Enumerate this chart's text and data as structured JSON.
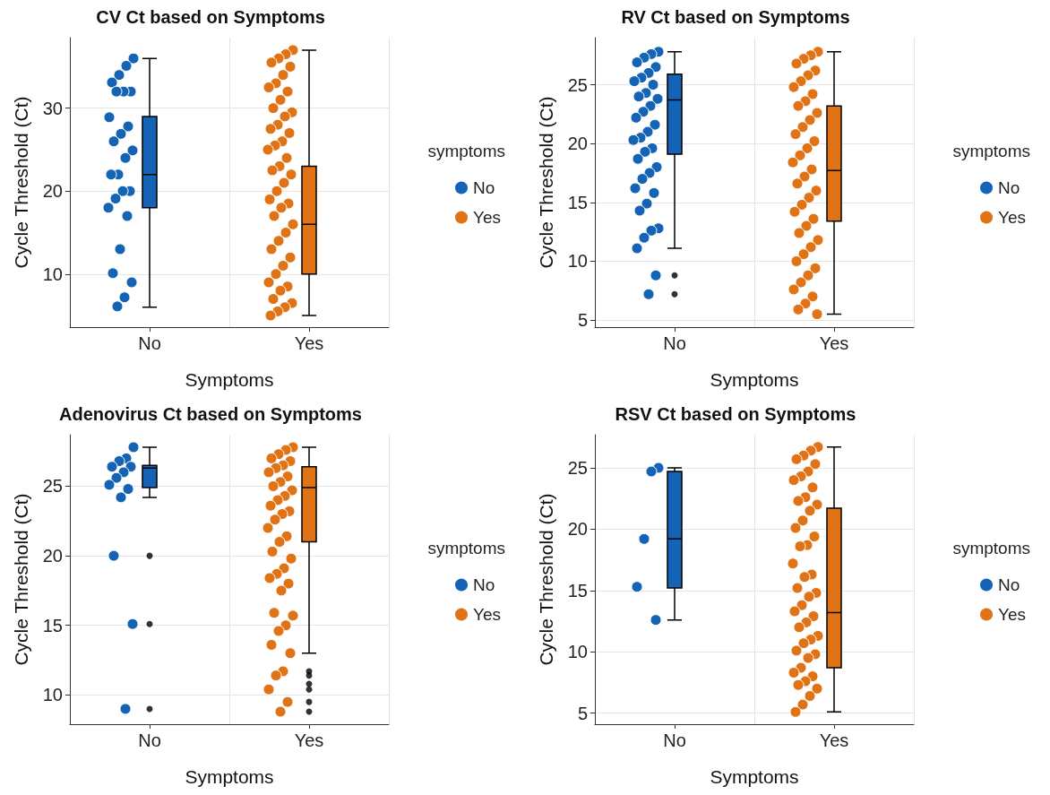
{
  "chart_data": [
    {
      "type": "box",
      "title": "CV Ct based on Symptoms",
      "xlabel": "Symptoms",
      "ylabel": "Cycle Threshold (Ct)",
      "legend_title": "symptoms",
      "legend": "right",
      "grid": true,
      "marker": "circle",
      "categories": [
        "No",
        "Yes"
      ],
      "colors": [
        "#1463b4",
        "#e07316"
      ],
      "ylim": [
        3.6,
        38.5
      ],
      "yticks": [
        10,
        20,
        30
      ],
      "boxes": [
        {
          "low": 6,
          "q1": 18,
          "median": 22,
          "q3": 29,
          "high": 36
        },
        {
          "low": 5,
          "q1": 10,
          "median": 16,
          "q3": 23,
          "high": 37
        }
      ],
      "series": [
        {
          "name": "No",
          "type": "scatter",
          "color": "#1463b4",
          "x": [
            "No",
            "No",
            "No",
            "No",
            "No",
            "No",
            "No",
            "No",
            "No",
            "No",
            "No",
            "No",
            "No",
            "No",
            "No",
            "No",
            "No",
            "No",
            "No",
            "No",
            "No",
            "No",
            "No",
            "No",
            "No"
          ],
          "values": [
            36,
            35.1,
            34,
            33.1,
            32,
            32,
            32,
            28.9,
            27.8,
            26.9,
            26,
            24.9,
            24,
            22,
            22,
            20,
            20,
            19.1,
            18,
            17,
            13,
            10.1,
            9,
            7.2,
            6.1
          ]
        },
        {
          "name": "Yes",
          "type": "scatter",
          "color": "#e07316",
          "x": [
            "Yes",
            "Yes",
            "Yes",
            "Yes",
            "Yes",
            "Yes",
            "Yes",
            "Yes",
            "Yes",
            "Yes",
            "Yes",
            "Yes",
            "Yes",
            "Yes",
            "Yes",
            "Yes",
            "Yes",
            "Yes",
            "Yes",
            "Yes",
            "Yes",
            "Yes",
            "Yes",
            "Yes",
            "Yes",
            "Yes",
            "Yes",
            "Yes",
            "Yes",
            "Yes",
            "Yes",
            "Yes",
            "Yes",
            "Yes",
            "Yes",
            "Yes",
            "Yes",
            "Yes",
            "Yes",
            "Yes",
            "Yes",
            "Yes",
            "Yes",
            "Yes"
          ],
          "values": [
            37,
            36.5,
            36,
            35.5,
            35,
            34,
            33,
            32.5,
            32,
            31,
            30,
            29.5,
            29,
            28,
            27.5,
            27,
            26,
            25.5,
            25,
            24,
            23,
            22.5,
            22,
            21,
            20,
            19,
            18.5,
            18,
            17,
            16,
            15,
            14,
            13,
            12,
            11,
            10,
            9,
            8.5,
            8,
            7,
            6.5,
            6,
            5.5,
            5
          ]
        }
      ]
    },
    {
      "type": "box",
      "title": "RV Ct based on Symptoms",
      "xlabel": "Symptoms",
      "ylabel": "Cycle Threshold (Ct)",
      "legend_title": "symptoms",
      "legend": "right",
      "grid": true,
      "marker": "circle",
      "categories": [
        "No",
        "Yes"
      ],
      "colors": [
        "#1463b4",
        "#e07316"
      ],
      "ylim": [
        4.4,
        29
      ],
      "yticks": [
        5,
        10,
        15,
        20,
        25
      ],
      "boxes": [
        {
          "low": 11.1,
          "q1": 19.1,
          "median": 23.7,
          "q3": 25.9,
          "high": 27.8,
          "outliers": [
            8.8,
            7.2
          ]
        },
        {
          "low": 5.5,
          "q1": 13.4,
          "median": 17.7,
          "q3": 23.2,
          "high": 27.8
        }
      ],
      "series": [
        {
          "name": "No",
          "type": "scatter",
          "color": "#1463b4",
          "x": [
            "No",
            "No",
            "No",
            "No",
            "No",
            "No",
            "No",
            "No",
            "No",
            "No",
            "No",
            "No",
            "No",
            "No",
            "No",
            "No",
            "No",
            "No",
            "No",
            "No",
            "No",
            "No",
            "No",
            "No",
            "No",
            "No",
            "No",
            "No",
            "No",
            "No",
            "No",
            "No",
            "No",
            "No",
            "No"
          ],
          "values": [
            27.8,
            27.6,
            27.3,
            26.9,
            26.5,
            26,
            25.6,
            25.3,
            25,
            24.3,
            24,
            23.8,
            23.2,
            22.7,
            22.2,
            21.6,
            21,
            20.5,
            20.3,
            19.6,
            19.3,
            18.7,
            18,
            17.5,
            17,
            16.2,
            15.8,
            14.9,
            14.3,
            12.8,
            12.6,
            12,
            11.1,
            8.8,
            7.2
          ]
        },
        {
          "name": "Yes",
          "type": "scatter",
          "color": "#e07316",
          "x": [
            "Yes",
            "Yes",
            "Yes",
            "Yes",
            "Yes",
            "Yes",
            "Yes",
            "Yes",
            "Yes",
            "Yes",
            "Yes",
            "Yes",
            "Yes",
            "Yes",
            "Yes",
            "Yes",
            "Yes",
            "Yes",
            "Yes",
            "Yes",
            "Yes",
            "Yes",
            "Yes",
            "Yes",
            "Yes",
            "Yes",
            "Yes",
            "Yes",
            "Yes",
            "Yes",
            "Yes",
            "Yes",
            "Yes",
            "Yes",
            "Yes",
            "Yes",
            "Yes",
            "Yes",
            "Yes",
            "Yes",
            "Yes"
          ],
          "values": [
            27.8,
            27.5,
            27.2,
            26.8,
            26.2,
            25.8,
            25.3,
            24.8,
            24.2,
            23.6,
            23.2,
            22.6,
            22,
            21.4,
            20.8,
            20.2,
            19.6,
            19,
            18.4,
            17.8,
            17.2,
            16.6,
            16,
            15.4,
            14.8,
            14.2,
            13.6,
            13,
            12.4,
            11.8,
            11.2,
            10.6,
            10,
            9.4,
            8.8,
            8.2,
            7.6,
            7,
            6.4,
            5.9,
            5.5
          ]
        }
      ]
    },
    {
      "type": "box",
      "title": "Adenovirus Ct based on Symptoms",
      "xlabel": "Symptoms",
      "ylabel": "Cycle Threshold (Ct)",
      "legend_title": "symptoms",
      "legend": "right",
      "grid": true,
      "marker": "circle",
      "categories": [
        "No",
        "Yes"
      ],
      "colors": [
        "#1463b4",
        "#e07316"
      ],
      "ylim": [
        7.9,
        28.7
      ],
      "yticks": [
        10,
        15,
        20,
        25
      ],
      "boxes": [
        {
          "low": 24.2,
          "q1": 24.9,
          "median": 26.3,
          "q3": 26.5,
          "high": 27.8,
          "outliers": [
            20,
            15.1,
            9
          ]
        },
        {
          "low": 13,
          "q1": 21,
          "median": 24.9,
          "q3": 26.4,
          "high": 27.8,
          "outliers": [
            11.7,
            11.4,
            10.8,
            10.4,
            9.5,
            8.8
          ]
        }
      ],
      "series": [
        {
          "name": "No",
          "type": "scatter",
          "color": "#1463b4",
          "x": [
            "No",
            "No",
            "No",
            "No",
            "No",
            "No",
            "No",
            "No",
            "No",
            "No",
            "No",
            "No",
            "No"
          ],
          "values": [
            27.8,
            27,
            26.8,
            26.4,
            26.4,
            26,
            25.6,
            25.1,
            24.8,
            24.2,
            20,
            15.1,
            9
          ]
        },
        {
          "name": "Yes",
          "type": "scatter",
          "color": "#e07316",
          "x": [
            "Yes",
            "Yes",
            "Yes",
            "Yes",
            "Yes",
            "Yes",
            "Yes",
            "Yes",
            "Yes",
            "Yes",
            "Yes",
            "Yes",
            "Yes",
            "Yes",
            "Yes",
            "Yes",
            "Yes",
            "Yes",
            "Yes",
            "Yes",
            "Yes",
            "Yes",
            "Yes",
            "Yes",
            "Yes",
            "Yes",
            "Yes",
            "Yes",
            "Yes",
            "Yes",
            "Yes",
            "Yes",
            "Yes",
            "Yes",
            "Yes",
            "Yes",
            "Yes",
            "Yes",
            "Yes"
          ],
          "values": [
            27.8,
            27.6,
            27.3,
            27,
            26.8,
            26.5,
            26.3,
            26,
            25.7,
            25.3,
            25,
            24.7,
            24.3,
            24,
            23.6,
            23.2,
            23,
            22.6,
            22,
            21.4,
            21,
            20.3,
            19.8,
            19.1,
            18.7,
            18.4,
            18,
            17.5,
            15.9,
            15.7,
            15,
            14.6,
            13.6,
            13,
            11.7,
            11.4,
            10.4,
            9.5,
            8.8
          ]
        }
      ]
    },
    {
      "type": "box",
      "title": "RSV Ct based on Symptoms",
      "xlabel": "Symptoms",
      "ylabel": "Cycle Threshold (Ct)",
      "legend_title": "symptoms",
      "legend": "right",
      "grid": true,
      "marker": "circle",
      "categories": [
        "No",
        "Yes"
      ],
      "colors": [
        "#1463b4",
        "#e07316"
      ],
      "ylim": [
        4.1,
        27.7
      ],
      "yticks": [
        5,
        10,
        15,
        20,
        25
      ],
      "boxes": [
        {
          "low": 12.6,
          "q1": 15.2,
          "median": 19.2,
          "q3": 24.7,
          "high": 25
        },
        {
          "low": 5.1,
          "q1": 8.7,
          "median": 13.2,
          "q3": 21.7,
          "high": 26.7
        }
      ],
      "series": [
        {
          "name": "No",
          "type": "scatter",
          "color": "#1463b4",
          "x": [
            "No",
            "No",
            "No",
            "No",
            "No"
          ],
          "values": [
            25,
            24.7,
            19.2,
            15.3,
            12.6
          ]
        },
        {
          "name": "Yes",
          "type": "scatter",
          "color": "#e07316",
          "x": [
            "Yes",
            "Yes",
            "Yes",
            "Yes",
            "Yes",
            "Yes",
            "Yes",
            "Yes",
            "Yes",
            "Yes",
            "Yes",
            "Yes",
            "Yes",
            "Yes",
            "Yes",
            "Yes",
            "Yes",
            "Yes",
            "Yes",
            "Yes",
            "Yes",
            "Yes",
            "Yes",
            "Yes",
            "Yes",
            "Yes",
            "Yes",
            "Yes",
            "Yes",
            "Yes",
            "Yes",
            "Yes",
            "Yes",
            "Yes",
            "Yes",
            "Yes",
            "Yes",
            "Yes",
            "Yes",
            "Yes",
            "Yes",
            "Yes",
            "Yes",
            "Yes"
          ],
          "values": [
            26.7,
            26.4,
            26,
            25.7,
            25.3,
            24.7,
            24.3,
            24,
            23.4,
            22.6,
            22.3,
            22,
            21.5,
            20.7,
            20.1,
            19.4,
            18.7,
            18.6,
            17.2,
            16.3,
            16.1,
            15.2,
            14.8,
            14.5,
            13.8,
            13.3,
            12.9,
            12.4,
            12,
            11.3,
            11,
            10.7,
            10.1,
            9.8,
            9.5,
            8.7,
            8.3,
            8,
            7.6,
            7.3,
            7,
            6.4,
            5.7,
            5.1
          ]
        }
      ]
    }
  ]
}
